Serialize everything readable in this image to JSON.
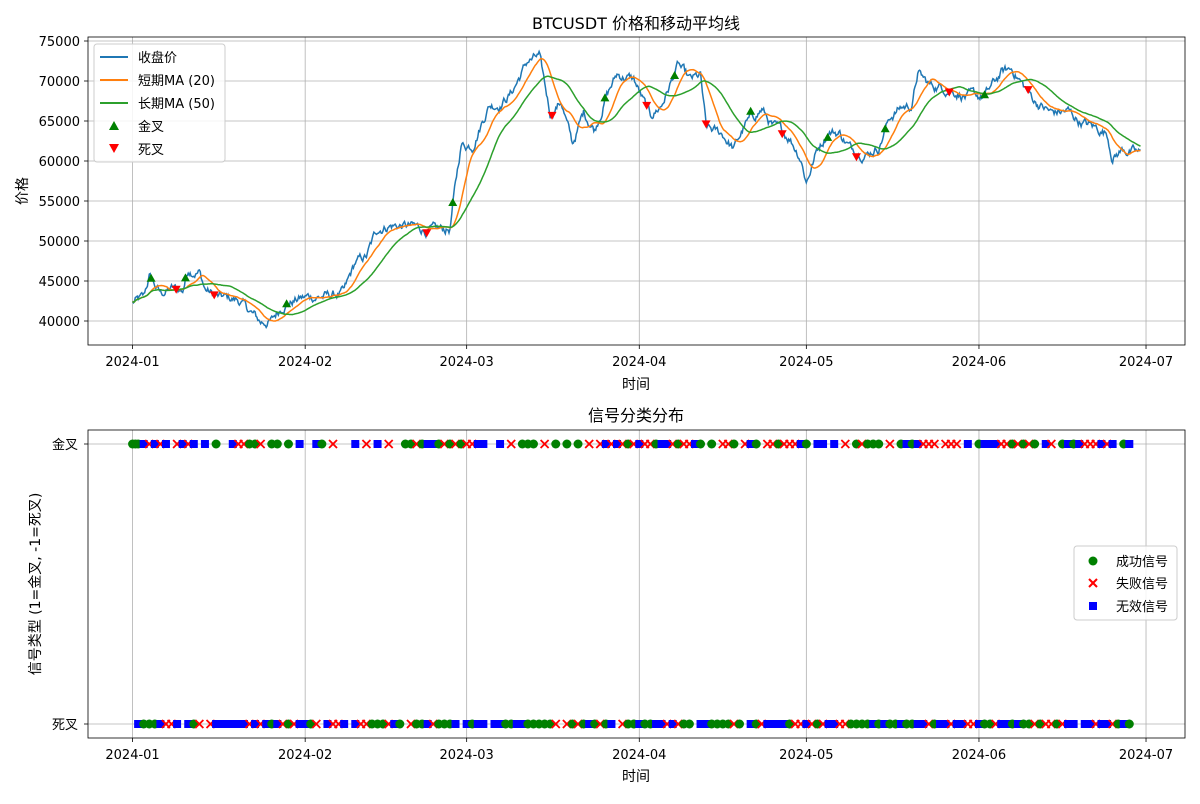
{
  "chart_data": [
    {
      "type": "line",
      "title": "BTCUSDT 价格和移动平均线",
      "xlabel": "时间",
      "ylabel": "价格",
      "xlim": [
        "2023-12-24",
        "2024-07-08"
      ],
      "ylim": [
        37000,
        75500
      ],
      "x_ticks": [
        "2024-01",
        "2024-02",
        "2024-03",
        "2024-04",
        "2024-05",
        "2024-06",
        "2024-07"
      ],
      "y_ticks": [
        40000,
        45000,
        50000,
        55000,
        60000,
        65000,
        70000,
        75000
      ],
      "grid": true,
      "legend_position": "upper left",
      "price_anchors": [
        [
          "2024-01-01",
          42300
        ],
        [
          "2024-01-03",
          42800
        ],
        [
          "2024-01-04",
          45500
        ],
        [
          "2024-01-06",
          43400
        ],
        [
          "2024-01-08",
          44000
        ],
        [
          "2024-01-10",
          43800
        ],
        [
          "2024-01-11",
          46500
        ],
        [
          "2024-01-13",
          46200
        ],
        [
          "2024-01-14",
          44000
        ],
        [
          "2024-01-16",
          43000
        ],
        [
          "2024-01-20",
          42600
        ],
        [
          "2024-01-22",
          41200
        ],
        [
          "2024-01-24",
          39800
        ],
        [
          "2024-01-26",
          40000
        ],
        [
          "2024-01-28",
          42000
        ],
        [
          "2024-01-31",
          42800
        ],
        [
          "2024-02-02",
          43000
        ],
        [
          "2024-02-05",
          43100
        ],
        [
          "2024-02-08",
          43500
        ],
        [
          "2024-02-10",
          47200
        ],
        [
          "2024-02-12",
          48000
        ],
        [
          "2024-02-14",
          51500
        ],
        [
          "2024-02-16",
          52000
        ],
        [
          "2024-02-20",
          51800
        ],
        [
          "2024-02-24",
          51200
        ],
        [
          "2024-02-27",
          51500
        ],
        [
          "2024-02-28",
          57000
        ],
        [
          "2024-02-29",
          62000
        ],
        [
          "2024-03-02",
          62000
        ],
        [
          "2024-03-05",
          67000
        ],
        [
          "2024-03-07",
          67200
        ],
        [
          "2024-03-09",
          68500
        ],
        [
          "2024-03-12",
          72500
        ],
        [
          "2024-03-14",
          73000
        ],
        [
          "2024-03-16",
          66000
        ],
        [
          "2024-03-18",
          67500
        ],
        [
          "2024-03-20",
          62000
        ],
        [
          "2024-03-22",
          66000
        ],
        [
          "2024-03-24",
          64000
        ],
        [
          "2024-03-26",
          68000
        ],
        [
          "2024-03-28",
          70800
        ],
        [
          "2024-03-31",
          70200
        ],
        [
          "2024-04-02",
          67000
        ],
        [
          "2024-04-03",
          65500
        ],
        [
          "2024-04-05",
          67000
        ],
        [
          "2024-04-08",
          72000
        ],
        [
          "2024-04-10",
          70000
        ],
        [
          "2024-04-12",
          70500
        ],
        [
          "2024-04-13",
          64000
        ],
        [
          "2024-04-16",
          63300
        ],
        [
          "2024-04-18",
          61500
        ],
        [
          "2024-04-20",
          64500
        ],
        [
          "2024-04-23",
          66500
        ],
        [
          "2024-04-25",
          64200
        ],
        [
          "2024-04-28",
          63000
        ],
        [
          "2024-04-30",
          60500
        ],
        [
          "2024-05-01",
          57500
        ],
        [
          "2024-05-03",
          61500
        ],
        [
          "2024-05-05",
          63800
        ],
        [
          "2024-05-07",
          63500
        ],
        [
          "2024-05-09",
          61500
        ],
        [
          "2024-05-12",
          61000
        ],
        [
          "2024-05-14",
          61800
        ],
        [
          "2024-05-16",
          65500
        ],
        [
          "2024-05-18",
          66700
        ],
        [
          "2024-05-20",
          67000
        ],
        [
          "2024-05-21",
          71000
        ],
        [
          "2024-05-23",
          69500
        ],
        [
          "2024-05-27",
          69000
        ],
        [
          "2024-05-30",
          68000
        ],
        [
          "2024-06-02",
          68000
        ],
        [
          "2024-06-05",
          71000
        ],
        [
          "2024-06-07",
          71500
        ],
        [
          "2024-06-09",
          69400
        ],
        [
          "2024-06-11",
          67500
        ],
        [
          "2024-06-14",
          66000
        ],
        [
          "2024-06-17",
          66200
        ],
        [
          "2024-06-19",
          65000
        ],
        [
          "2024-06-24",
          63500
        ],
        [
          "2024-06-25",
          60500
        ],
        [
          "2024-06-27",
          61500
        ],
        [
          "2024-06-30",
          60800
        ]
      ],
      "series": [
        {
          "name": "收盘价",
          "color": "#1f77b4"
        },
        {
          "name": "短期MA (20)",
          "color": "#ff7f0e"
        },
        {
          "name": "长期MA (50)",
          "color": "#2ca02c"
        },
        {
          "name": "金叉",
          "color": "#008000",
          "marker": "triangle-up"
        },
        {
          "name": "死叉",
          "color": "#ff0000",
          "marker": "triangle-down"
        }
      ]
    },
    {
      "type": "scatter",
      "title": "信号分类分布",
      "xlabel": "时间",
      "ylabel": "信号类型 (1=金叉, -1=死叉)",
      "xlim": [
        "2023-12-24",
        "2024-07-08"
      ],
      "ylim": [
        -1.1,
        1.1
      ],
      "x_ticks": [
        "2024-01",
        "2024-02",
        "2024-03",
        "2024-04",
        "2024-05",
        "2024-06",
        "2024-07"
      ],
      "y_ticks": [
        {
          "value": 1,
          "label": "金叉"
        },
        {
          "value": -1,
          "label": "死叉"
        }
      ],
      "grid": true,
      "legend_position": "center right",
      "series": [
        {
          "name": "成功信号",
          "color": "#008000",
          "marker": "circle"
        },
        {
          "name": "失败信号",
          "color": "#ff0000",
          "marker": "x"
        },
        {
          "name": "无效信号",
          "color": "#0000ff",
          "marker": "square"
        }
      ],
      "signal_days": {
        "golden": [
          0,
          0.5,
          1,
          2,
          3,
          4,
          5,
          6,
          8,
          9,
          10,
          11,
          13,
          15,
          18,
          19,
          20,
          21,
          22,
          23,
          25,
          26,
          28,
          30,
          33,
          34,
          36,
          40,
          42,
          44,
          46,
          49,
          50,
          51,
          52,
          53,
          54,
          55,
          56,
          57,
          58,
          59,
          60,
          61,
          62,
          63,
          66,
          68,
          70,
          71,
          72,
          74,
          76,
          78,
          80,
          82,
          84,
          85,
          86,
          87,
          88,
          89,
          90,
          91,
          92,
          93,
          94,
          95,
          96,
          97,
          98,
          99,
          100,
          101,
          102,
          104,
          106,
          107,
          108,
          110,
          111,
          112,
          114,
          115,
          116,
          117,
          118,
          119,
          120,
          121,
          123,
          124,
          126,
          128,
          130,
          131,
          132,
          133,
          134,
          136,
          138,
          139,
          140,
          141,
          142,
          143,
          144,
          146,
          147,
          148,
          150,
          152,
          153,
          154,
          155,
          156,
          157,
          158,
          159,
          160,
          161,
          162,
          164,
          165,
          167,
          168,
          169,
          170,
          171,
          172,
          173,
          174,
          175,
          176,
          178,
          179
        ],
        "death": [
          1,
          2,
          3,
          4,
          5,
          6,
          7,
          8,
          10,
          11,
          12,
          14,
          15,
          16,
          17,
          18,
          19,
          20,
          21,
          22,
          23,
          24,
          25,
          26,
          27,
          28,
          29,
          30,
          31,
          32,
          33,
          35,
          36,
          37,
          38,
          40,
          41,
          42,
          43,
          44,
          45,
          46,
          47,
          48,
          50,
          51,
          52,
          53,
          54,
          55,
          56,
          57,
          58,
          60,
          61,
          62,
          63,
          65,
          66,
          67,
          68,
          69,
          70,
          71,
          72,
          73,
          74,
          75,
          76,
          78,
          79,
          80,
          81,
          82,
          83,
          84,
          85,
          86,
          88,
          89,
          90,
          91,
          92,
          93,
          94,
          95,
          96,
          97,
          98,
          99,
          100,
          102,
          103,
          104,
          105,
          106,
          107,
          108,
          109,
          111,
          112,
          113,
          114,
          115,
          116,
          117,
          118,
          119,
          120,
          121,
          122,
          123,
          124,
          125,
          126,
          127,
          128,
          129,
          130,
          131,
          132,
          133,
          134,
          135,
          136,
          137,
          138,
          139,
          140,
          141,
          142,
          143,
          144,
          145,
          146,
          147,
          148,
          149,
          150,
          151,
          152,
          153,
          154,
          155,
          156,
          157,
          158,
          159,
          160,
          161,
          162,
          163,
          164,
          165,
          166,
          167,
          168,
          169,
          171,
          172,
          173,
          174,
          175,
          176,
          177,
          178,
          179
        ]
      }
    }
  ]
}
